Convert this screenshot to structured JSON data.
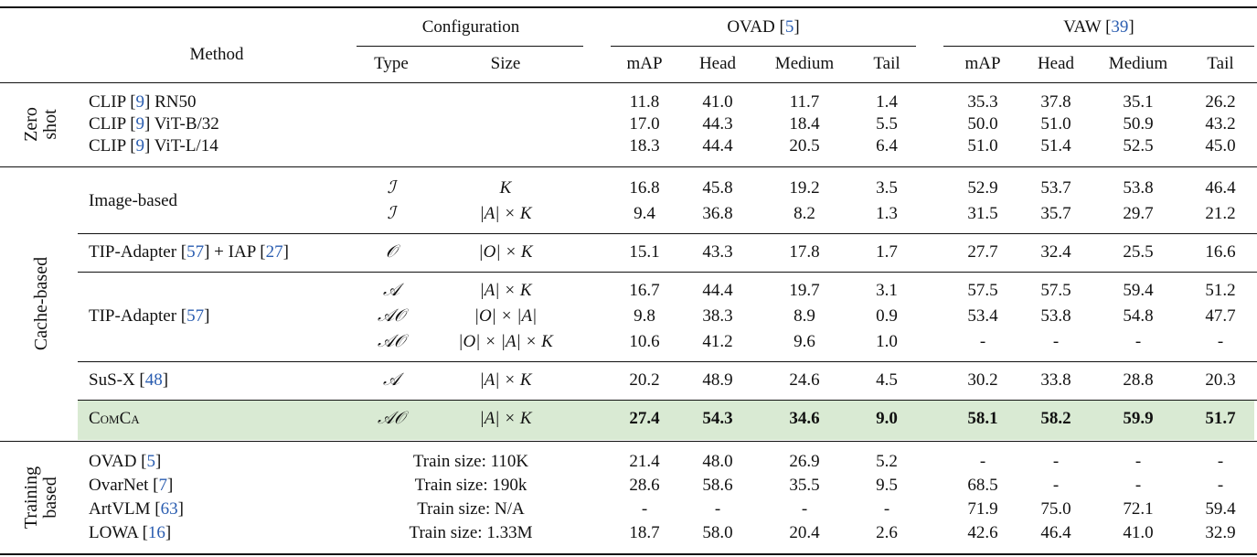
{
  "header": {
    "method": "Method",
    "configuration": "Configuration",
    "datasets": [
      [
        "OVAD [",
        "5",
        "]"
      ],
      [
        "VAW [",
        "39",
        "]"
      ]
    ],
    "subheaders": [
      "Type",
      "Size",
      "mAP",
      "Head",
      "Medium",
      "Tail",
      "mAP",
      "Head",
      "Medium",
      "Tail"
    ]
  },
  "groups": [
    {
      "label": [
        "Zero",
        "shot"
      ],
      "blocks": [
        {
          "rows": [
            {
              "method": [
                "CLIP [",
                "9",
                "] RN50"
              ],
              "values": [
                "11.8",
                "41.0",
                "11.7",
                "1.4",
                "35.3",
                "37.8",
                "35.1",
                "26.2"
              ]
            },
            {
              "method": [
                "CLIP [",
                "9",
                "] ViT-B/32"
              ],
              "values": [
                "17.0",
                "44.3",
                "18.4",
                "5.5",
                "50.0",
                "51.0",
                "50.9",
                "43.2"
              ]
            },
            {
              "method": [
                "CLIP [",
                "9",
                "] ViT-L/14"
              ],
              "values": [
                "18.3",
                "44.4",
                "20.5",
                "6.4",
                "51.0",
                "51.4",
                "52.5",
                "45.0"
              ]
            }
          ]
        }
      ]
    },
    {
      "label": [
        "Cache-based"
      ],
      "blocks": [
        {
          "method": [
            "Image-based"
          ],
          "rows": [
            {
              "type": "ℐ",
              "size": "K",
              "values": [
                "16.8",
                "45.8",
                "19.2",
                "3.5",
                "52.9",
                "53.7",
                "53.8",
                "46.4"
              ]
            },
            {
              "type": "ℐ",
              "size": "|A| × K",
              "values": [
                "9.4",
                "36.8",
                "8.2",
                "1.3",
                "31.5",
                "35.7",
                "29.7",
                "21.2"
              ]
            }
          ]
        },
        {
          "method": [
            "TIP-Adapter [",
            "57",
            "] + IAP [",
            "27",
            "]"
          ],
          "rows": [
            {
              "type": "𝒪",
              "size": "|O| × K",
              "values": [
                "15.1",
                "43.3",
                "17.8",
                "1.7",
                "27.7",
                "32.4",
                "25.5",
                "16.6"
              ]
            }
          ]
        },
        {
          "method": [
            "TIP-Adapter [",
            "57",
            "]"
          ],
          "rows": [
            {
              "type": "𝒜",
              "size": "|A| × K",
              "values": [
                "16.7",
                "44.4",
                "19.7",
                "3.1",
                "57.5",
                "57.5",
                "59.4",
                "51.2"
              ]
            },
            {
              "type": "𝒜𝒪",
              "size": "|O| × |A|",
              "values": [
                "9.8",
                "38.3",
                "8.9",
                "0.9",
                "53.4",
                "53.8",
                "54.8",
                "47.7"
              ]
            },
            {
              "type": "𝒜𝒪",
              "size": "|O| × |A| × K",
              "values": [
                "10.6",
                "41.2",
                "9.6",
                "1.0",
                "-",
                "-",
                "-",
                "-"
              ]
            }
          ]
        },
        {
          "method": [
            "SuS-X [",
            "48",
            "]"
          ],
          "rows": [
            {
              "type": "𝒜",
              "size": "|A| × K",
              "values": [
                "20.2",
                "48.9",
                "24.6",
                "4.5",
                "30.2",
                "33.8",
                "28.8",
                "20.3"
              ]
            }
          ]
        },
        {
          "method": [
            "ComCa"
          ],
          "highlight": true,
          "rows": [
            {
              "type": "𝒜𝒪",
              "size": "|A| × K",
              "values": [
                "27.4",
                "54.3",
                "34.6",
                "9.0",
                "58.1",
                "58.2",
                "59.9",
                "51.7"
              ]
            }
          ]
        }
      ]
    },
    {
      "label": [
        "Training",
        "based"
      ],
      "blocks": [
        {
          "rows": [
            {
              "method": [
                "OVAD [",
                "5",
                "]"
              ],
              "config": "Train size: 110K",
              "values": [
                "21.4",
                "48.0",
                "26.9",
                "5.2",
                "-",
                "-",
                "-",
                "-"
              ]
            },
            {
              "method": [
                "OvarNet [",
                "7",
                "]"
              ],
              "config": "Train size: 190k",
              "values": [
                "28.6",
                "58.6",
                "35.5",
                "9.5",
                "68.5",
                "-",
                "-",
                "-"
              ]
            },
            {
              "method": [
                "ArtVLM [",
                "63",
                "]"
              ],
              "config": "Train size: N/A",
              "values": [
                "-",
                "-",
                "-",
                "-",
                "71.9",
                "75.0",
                "72.1",
                "59.4"
              ]
            },
            {
              "method": [
                "LOWA [",
                "16",
                "]"
              ],
              "config": "Train size: 1.33M",
              "values": [
                "18.7",
                "58.0",
                "20.4",
                "2.6",
                "42.6",
                "46.4",
                "41.0",
                "32.9"
              ]
            }
          ]
        }
      ]
    }
  ]
}
